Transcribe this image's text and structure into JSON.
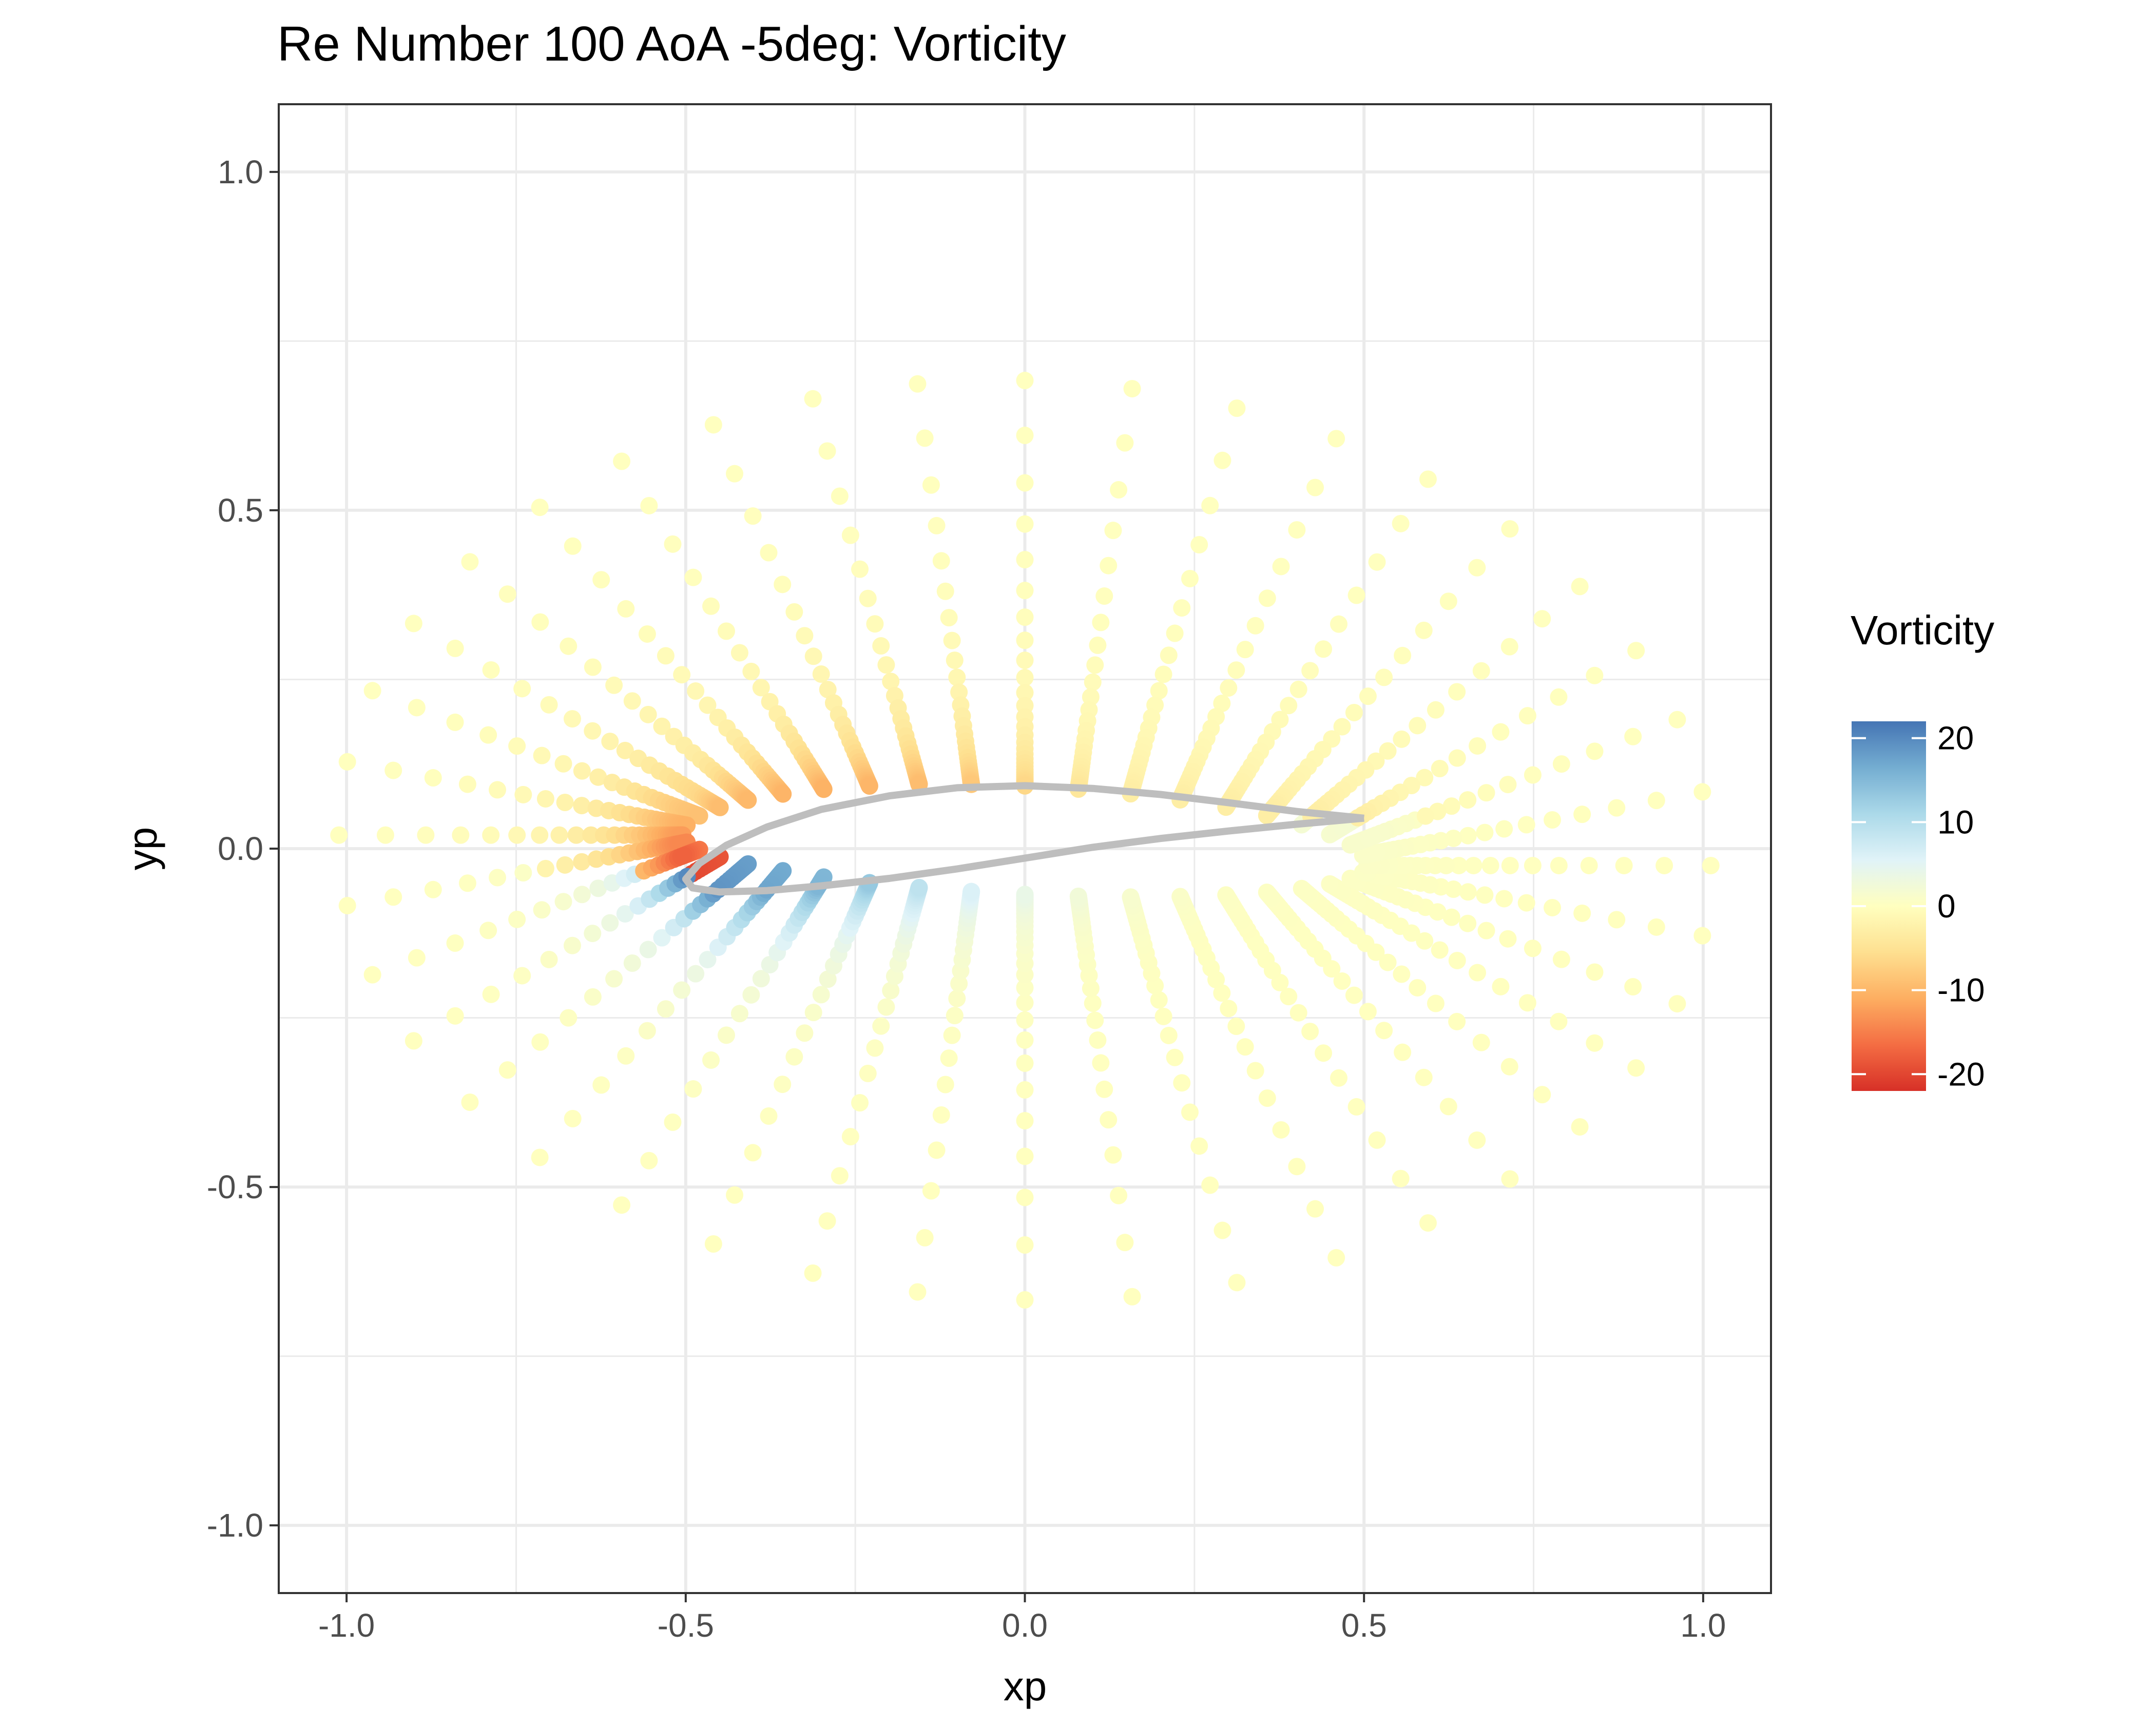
{
  "chart_data": {
    "type": "scatter",
    "title": "Re Number 100 AoA -5deg: Vorticity",
    "xlabel": "xp",
    "ylabel": "yp",
    "xlim": [
      -1.1,
      1.1
    ],
    "ylim": [
      -1.1,
      1.1
    ],
    "x_ticks": [
      -1.0,
      -0.5,
      0.0,
      0.5,
      1.0
    ],
    "y_ticks": [
      -1.0,
      -0.5,
      0.0,
      0.5,
      1.0
    ],
    "x_tick_labels": [
      "-1.0",
      "-0.5",
      "0.0",
      "0.5",
      "1.0"
    ],
    "y_tick_labels": [
      "-1.0",
      "-0.5",
      "0.0",
      "0.5",
      "1.0"
    ],
    "grid": true,
    "legend": {
      "title": "Vorticity",
      "position": "right",
      "range": [
        -22,
        22
      ],
      "breaks": [
        20,
        10,
        0,
        -10,
        -20
      ],
      "break_labels": [
        "20",
        "10",
        "0",
        "-10",
        "-20"
      ],
      "colors": [
        "#d73027",
        "#f46d43",
        "#fdae61",
        "#fee090",
        "#ffffbf",
        "#e0f3f8",
        "#abd9e9",
        "#74add1",
        "#4575b4"
      ]
    },
    "airfoil_outline": {
      "color": "#bebebe",
      "points": [
        [
          0.5,
          0.045
        ],
        [
          0.4,
          0.055
        ],
        [
          0.3,
          0.068
        ],
        [
          0.2,
          0.08
        ],
        [
          0.1,
          0.089
        ],
        [
          0.0,
          0.093
        ],
        [
          -0.1,
          0.09
        ],
        [
          -0.2,
          0.078
        ],
        [
          -0.3,
          0.058
        ],
        [
          -0.38,
          0.032
        ],
        [
          -0.44,
          0.005
        ],
        [
          -0.48,
          -0.022
        ],
        [
          -0.5,
          -0.045
        ],
        [
          -0.49,
          -0.058
        ],
        [
          -0.45,
          -0.064
        ],
        [
          -0.38,
          -0.062
        ],
        [
          -0.3,
          -0.055
        ],
        [
          -0.2,
          -0.044
        ],
        [
          -0.1,
          -0.03
        ],
        [
          0.0,
          -0.014
        ],
        [
          0.1,
          0.002
        ],
        [
          0.2,
          0.015
        ],
        [
          0.3,
          0.026
        ],
        [
          0.4,
          0.036
        ],
        [
          0.5,
          0.045
        ]
      ]
    },
    "series": [
      {
        "x": [
          -0.5,
          -0.48,
          -0.45,
          -0.42,
          -0.38,
          -0.33,
          -0.28
        ],
        "y": [
          -0.06,
          -0.068,
          -0.074,
          -0.076,
          -0.076,
          -0.072,
          -0.068
        ],
        "vorticity": [
          20,
          18,
          15,
          13,
          11,
          9,
          8
        ]
      },
      {
        "x": [
          -0.46,
          -0.42,
          -0.38,
          -0.34,
          -0.3
        ],
        "y": [
          0.0,
          0.02,
          0.036,
          0.048,
          0.058
        ],
        "vorticity": [
          -19,
          -17,
          -15,
          -12,
          -10
        ]
      },
      {
        "x": [
          0.0,
          0.12,
          0.24,
          0.36,
          0.49
        ],
        "y": [
          0.1,
          0.1,
          0.09,
          0.08,
          0.05
        ],
        "vorticity": [
          -7,
          -6,
          -5,
          -4,
          -3
        ]
      },
      {
        "x": [
          0.0,
          0.12,
          0.24,
          0.36,
          0.49
        ],
        "y": [
          -0.02,
          0.0,
          0.02,
          0.03,
          0.04
        ],
        "vorticity": [
          4,
          3,
          2,
          2,
          2
        ]
      }
    ]
  }
}
